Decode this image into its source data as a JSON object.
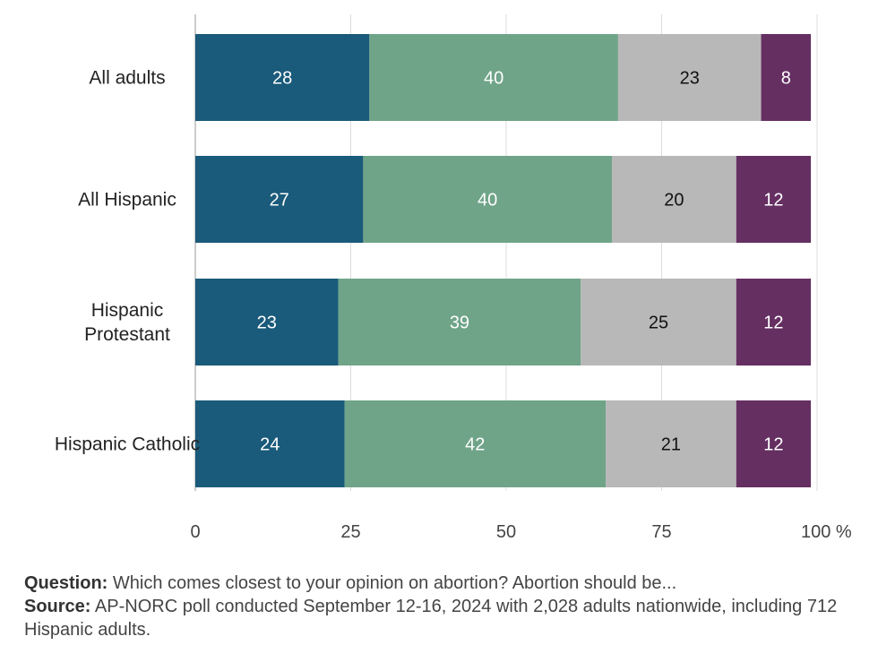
{
  "chart_data": {
    "type": "bar",
    "orientation": "horizontal",
    "stacked": true,
    "categories": [
      "All adults",
      "All Hispanic",
      "Hispanic Protestant",
      "Hispanic Catholic"
    ],
    "category_lines": [
      [
        "All adults"
      ],
      [
        "All Hispanic"
      ],
      [
        "Hispanic",
        "Protestant"
      ],
      [
        "Hispanic Catholic"
      ]
    ],
    "series": [
      {
        "color": "#1a5a7a",
        "label_color": "#ffffff",
        "values": [
          28,
          27,
          23,
          24
        ]
      },
      {
        "color": "#6fa488",
        "label_color": "#ffffff",
        "values": [
          40,
          40,
          39,
          42
        ]
      },
      {
        "color": "#b8b8b8",
        "label_color": "#111111",
        "values": [
          23,
          20,
          25,
          21
        ]
      },
      {
        "color": "#652f62",
        "label_color": "#ffffff",
        "values": [
          8,
          12,
          12,
          12
        ]
      }
    ],
    "xlim": [
      0,
      100
    ],
    "xticks": [
      0,
      25,
      50,
      75,
      100
    ],
    "xtick_labels": [
      "0",
      "25",
      "50",
      "75",
      "100 %"
    ],
    "grid": true,
    "legend": "none"
  },
  "footnotes": {
    "question_label": "Question:",
    "question_text": " Which comes closest to your opinion on abortion? Abortion should be...",
    "source_label": "Source:",
    "source_text": " AP-NORC poll conducted September 12-16, 2024 with 2,028 adults nationwide, including 712 Hispanic adults."
  }
}
